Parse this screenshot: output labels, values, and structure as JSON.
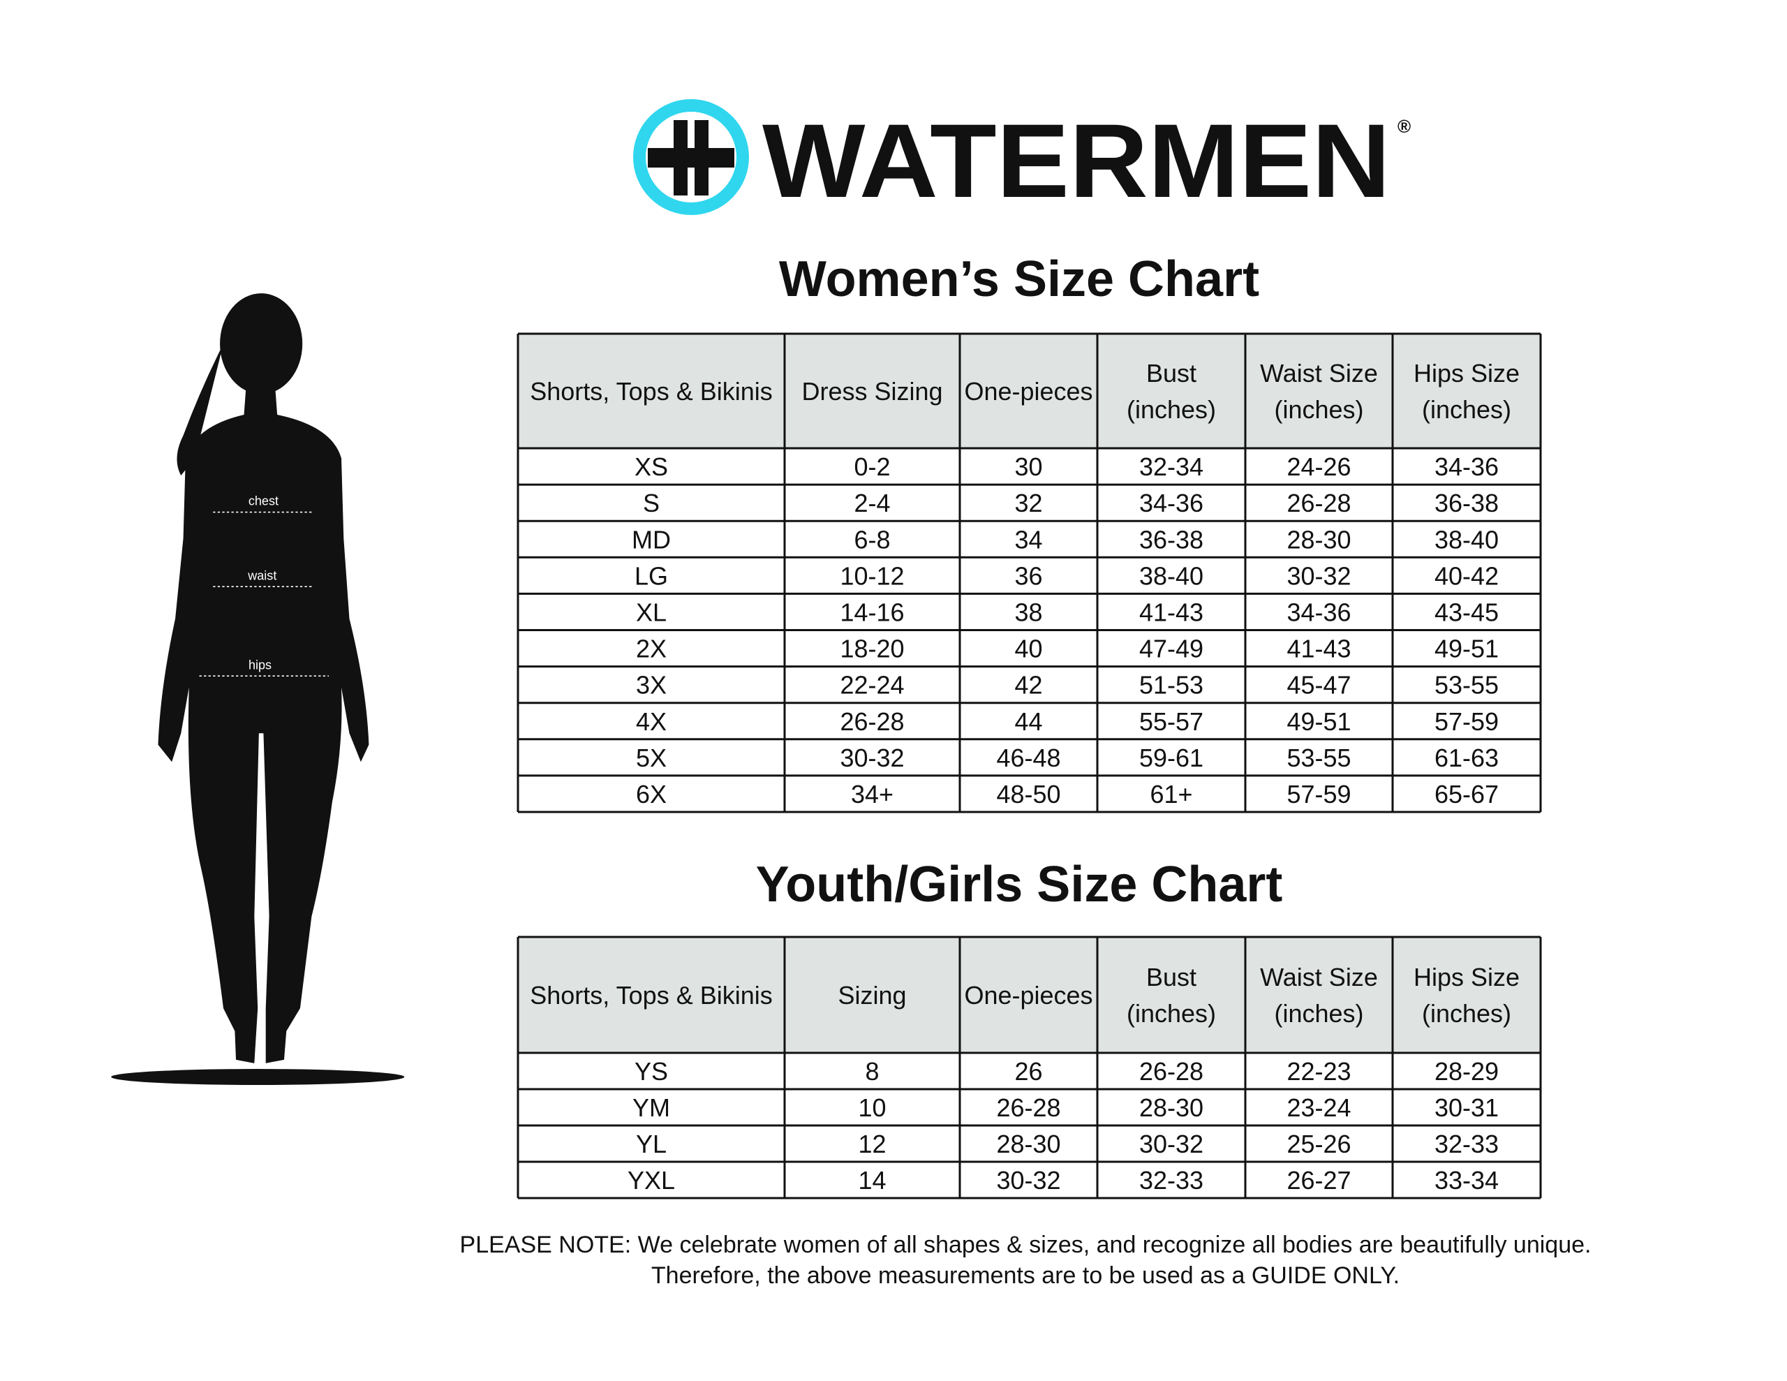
{
  "logo": {
    "brand": "WATERMEN",
    "trademark": "®"
  },
  "figure": {
    "labels": [
      "chest",
      "waist",
      "hips"
    ]
  },
  "womens": {
    "title": "Women’s Size Chart",
    "headers": [
      [
        "Shorts, Tops & Bikinis"
      ],
      [
        "Dress Sizing"
      ],
      [
        "One-pieces"
      ],
      [
        "Bust",
        "(inches)"
      ],
      [
        "Waist Size",
        "(inches)"
      ],
      [
        "Hips Size",
        "(inches)"
      ]
    ],
    "rows": [
      [
        "XS",
        "0-2",
        "30",
        "32-34",
        "24-26",
        "34-36"
      ],
      [
        "S",
        "2-4",
        "32",
        "34-36",
        "26-28",
        "36-38"
      ],
      [
        "MD",
        "6-8",
        "34",
        "36-38",
        "28-30",
        "38-40"
      ],
      [
        "LG",
        "10-12",
        "36",
        "38-40",
        "30-32",
        "40-42"
      ],
      [
        "XL",
        "14-16",
        "38",
        "41-43",
        "34-36",
        "43-45"
      ],
      [
        "2X",
        "18-20",
        "40",
        "47-49",
        "41-43",
        "49-51"
      ],
      [
        "3X",
        "22-24",
        "42",
        "51-53",
        "45-47",
        "53-55"
      ],
      [
        "4X",
        "26-28",
        "44",
        "55-57",
        "49-51",
        "57-59"
      ],
      [
        "5X",
        "30-32",
        "46-48",
        "59-61",
        "53-55",
        "61-63"
      ],
      [
        "6X",
        "34+",
        "48-50",
        "61+",
        "57-59",
        "65-67"
      ]
    ]
  },
  "youth": {
    "title": "Youth/Girls Size Chart",
    "headers": [
      [
        "Shorts, Tops & Bikinis"
      ],
      [
        "Sizing"
      ],
      [
        "One-pieces"
      ],
      [
        "Bust",
        "(inches)"
      ],
      [
        "Waist Size",
        "(inches)"
      ],
      [
        "Hips Size",
        "(inches)"
      ]
    ],
    "rows": [
      [
        "YS",
        "8",
        "26",
        "26-28",
        "22-23",
        "28-29"
      ],
      [
        "YM",
        "10",
        "26-28",
        "28-30",
        "23-24",
        "30-31"
      ],
      [
        "YL",
        "12",
        "28-30",
        "30-32",
        "25-26",
        "32-33"
      ],
      [
        "YXL",
        "14",
        "30-32",
        "32-33",
        "26-27",
        "33-34"
      ]
    ]
  },
  "note": [
    "PLEASE NOTE: We celebrate women of all shapes & sizes, and recognize all bodies are beautifully unique.",
    "Therefore, the above measurements are to be used as a GUIDE ONLY."
  ]
}
